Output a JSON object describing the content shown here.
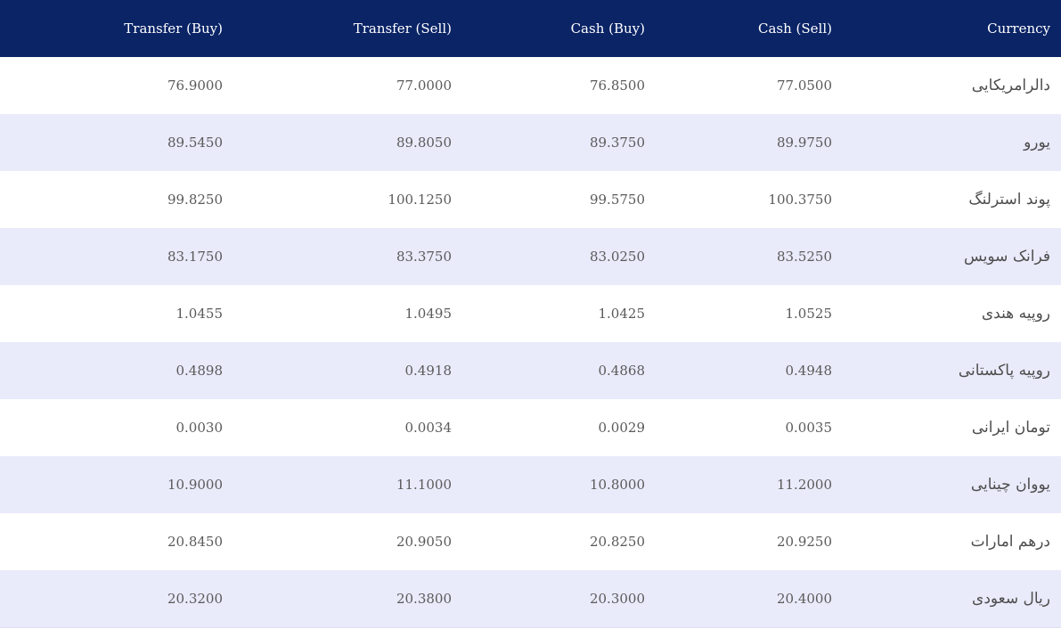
{
  "table": {
    "headers": {
      "transfer_buy": "Transfer (Buy)",
      "transfer_sell": "Transfer (Sell)",
      "cash_buy": "Cash (Buy)",
      "cash_sell": "Cash (Sell)",
      "currency": "Currency"
    },
    "rows": [
      {
        "currency": "دالرامریکایی",
        "cash_sell": "77.0500",
        "cash_buy": "76.8500",
        "transfer_sell": "77.0000",
        "transfer_buy": "76.9000"
      },
      {
        "currency": "یورو",
        "cash_sell": "89.9750",
        "cash_buy": "89.3750",
        "transfer_sell": "89.8050",
        "transfer_buy": "89.5450"
      },
      {
        "currency": "پوند استرلنگ",
        "cash_sell": "100.3750",
        "cash_buy": "99.5750",
        "transfer_sell": "100.1250",
        "transfer_buy": "99.8250"
      },
      {
        "currency": "فرانک سویس",
        "cash_sell": "83.5250",
        "cash_buy": "83.0250",
        "transfer_sell": "83.3750",
        "transfer_buy": "83.1750"
      },
      {
        "currency": "روپیه هندی",
        "cash_sell": "1.0525",
        "cash_buy": "1.0425",
        "transfer_sell": "1.0495",
        "transfer_buy": "1.0455"
      },
      {
        "currency": "روپیه پاکستانی",
        "cash_sell": "0.4948",
        "cash_buy": "0.4868",
        "transfer_sell": "0.4918",
        "transfer_buy": "0.4898"
      },
      {
        "currency": "تومان ایرانی",
        "cash_sell": "0.0035",
        "cash_buy": "0.0029",
        "transfer_sell": "0.0034",
        "transfer_buy": "0.0030"
      },
      {
        "currency": "یووان چینایی",
        "cash_sell": "11.2000",
        "cash_buy": "10.8000",
        "transfer_sell": "11.1000",
        "transfer_buy": "10.9000"
      },
      {
        "currency": "درهم امارات",
        "cash_sell": "20.9250",
        "cash_buy": "20.8250",
        "transfer_sell": "20.9050",
        "transfer_buy": "20.8450"
      },
      {
        "currency": "ریال سعودی",
        "cash_sell": "20.4000",
        "cash_buy": "20.3000",
        "transfer_sell": "20.3800",
        "transfer_buy": "20.3200"
      }
    ]
  },
  "colors": {
    "header_bg": "#0a2466",
    "row_alt_bg": "#e9ebfb"
  }
}
